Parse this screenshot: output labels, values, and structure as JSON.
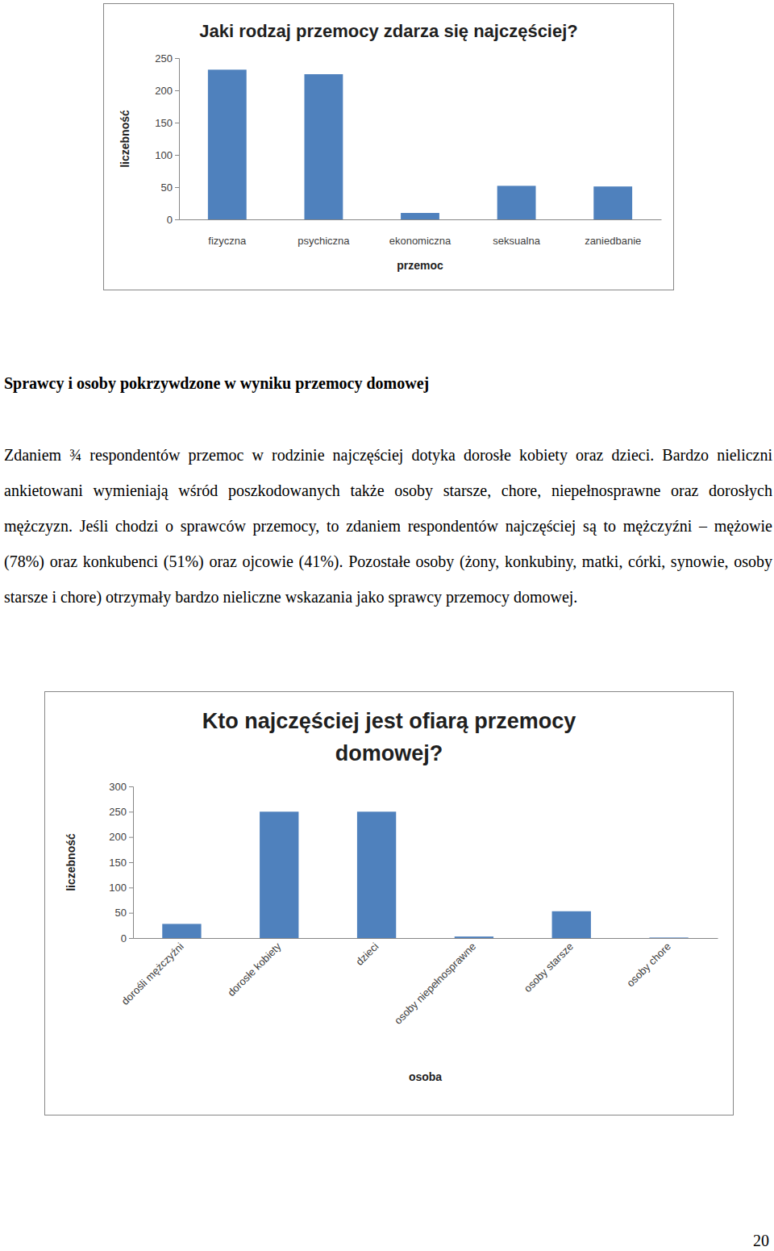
{
  "chart_data": [
    {
      "type": "bar",
      "title": "Jaki rodzaj przemocy zdarza się najczęściej?",
      "x_label": "przemoc",
      "y_label": "liczebność",
      "categories": [
        "fizyczna",
        "psychiczna",
        "ekonomiczna",
        "seksualna",
        "zaniedbanie"
      ],
      "values": [
        232,
        225,
        10,
        52,
        51
      ],
      "color": "#4f81bd",
      "ylim": [
        0,
        250
      ],
      "yticks": [
        0,
        50,
        100,
        150,
        200,
        250
      ],
      "grid": false
    },
    {
      "type": "bar",
      "title": "Kto najczęściej jest ofiarą przemocy domowej?",
      "x_label": "osoba",
      "y_label": "liczebność",
      "categories": [
        "dorośli mężczyźni",
        "dorosłe kobiety",
        "dzieci",
        "osoby niepełnosprawne",
        "osoby starsze",
        "osoby chore"
      ],
      "values": [
        28,
        250,
        250,
        3,
        53,
        1
      ],
      "color": "#4f81bd",
      "ylim": [
        0,
        300
      ],
      "yticks": [
        0,
        50,
        100,
        150,
        200,
        250,
        300
      ],
      "grid": false
    }
  ],
  "document": {
    "heading": "Sprawcy i osoby pokrzywdzone w wyniku przemocy domowej",
    "paragraph": "Zdaniem ¾ respondentów przemoc w rodzinie najczęściej dotyka dorosłe kobiety oraz dzieci. Bardzo nieliczni ankietowani wymieniają wśród poszkodowanych także osoby starsze, chore, niepełnosprawne oraz dorosłych mężczyzn. Jeśli chodzi o sprawców przemocy, to zdaniem respondentów najczęściej są to mężczyźni – mężowie (78%) oraz konkubenci (51%) oraz ojcowie (41%). Pozostałe osoby (żony, konkubiny, matki, córki, synowie, osoby starsze i chore) otrzymały bardzo nieliczne wskazania jako sprawcy przemocy domowej.",
    "page_number": "20"
  }
}
